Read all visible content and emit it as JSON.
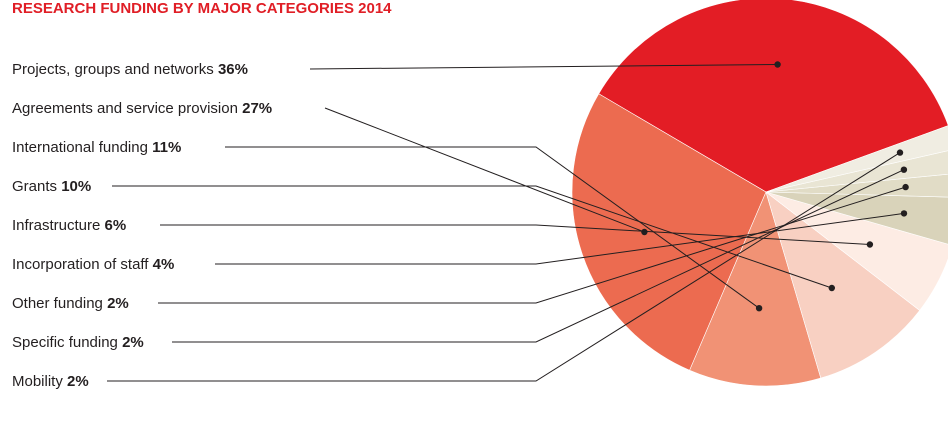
{
  "chart_data": {
    "type": "pie",
    "title": "RESEARCH FUNDING BY MAJOR CATEGORIES 2014",
    "slices": [
      {
        "label": "Projects, groups and networks",
        "value": 36,
        "value_label": "36%",
        "color": "#e31d25"
      },
      {
        "label": "Agreements and service provision",
        "value": 27,
        "value_label": "27%",
        "color": "#ec6b50"
      },
      {
        "label": "International funding",
        "value": 11,
        "value_label": "11%",
        "color": "#f19275"
      },
      {
        "label": "Grants",
        "value": 10,
        "value_label": "10%",
        "color": "#f8d0c2"
      },
      {
        "label": "Infrastructure",
        "value": 6,
        "value_label": "6%",
        "color": "#fdece4"
      },
      {
        "label": "Incorporation of staff",
        "value": 4,
        "value_label": "4%",
        "color": "#d9d3ba"
      },
      {
        "label": "Other funding",
        "value": 2,
        "value_label": "2%",
        "color": "#e1dcc6"
      },
      {
        "label": "Specific funding",
        "value": 2,
        "value_label": "2%",
        "color": "#e9e5d4"
      },
      {
        "label": "Mobility",
        "value": 2,
        "value_label": "2%",
        "color": "#f0ede2"
      }
    ],
    "legend": "left"
  }
}
